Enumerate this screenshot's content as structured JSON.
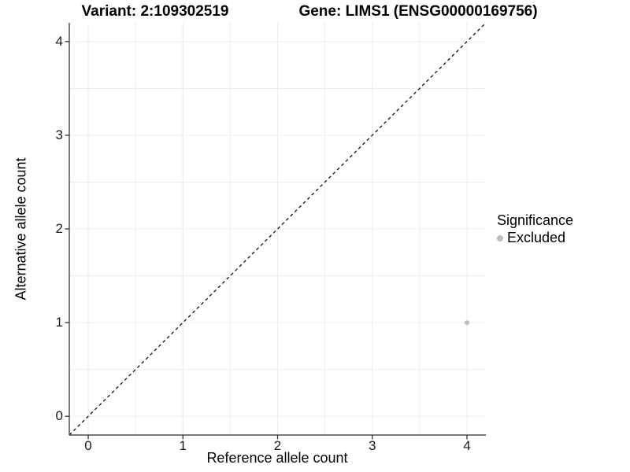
{
  "chart_data": {
    "type": "scatter",
    "title_left": "Variant: 2:109302519",
    "title_right": "Gene: LIMS1 (ENSG00000169756)",
    "xlabel": "Reference allele count",
    "ylabel": "Alternative allele count",
    "xlim": [
      -0.2,
      4.2
    ],
    "ylim": [
      -0.2,
      4.2
    ],
    "x_ticks": [
      0,
      1,
      2,
      3,
      4
    ],
    "y_ticks": [
      0,
      1,
      2,
      3,
      4
    ],
    "grid": true,
    "minor_grid_step": 0.5,
    "legend_position": "right",
    "legend_title": "Significance",
    "series": [
      {
        "name": "Excluded",
        "color": "#bebebe",
        "marker_radius": 3,
        "points": [
          [
            4,
            1
          ]
        ]
      }
    ],
    "reference_line": {
      "kind": "identity",
      "equation": "y = x",
      "style": "dashed",
      "color": "#111111"
    }
  },
  "style": {
    "grid_color": "#ececec",
    "axis_line_color": "#4d4d4d",
    "tick_mark_color": "#333333",
    "tick_label_color": "#1a1a1a",
    "background": "#ffffff"
  }
}
